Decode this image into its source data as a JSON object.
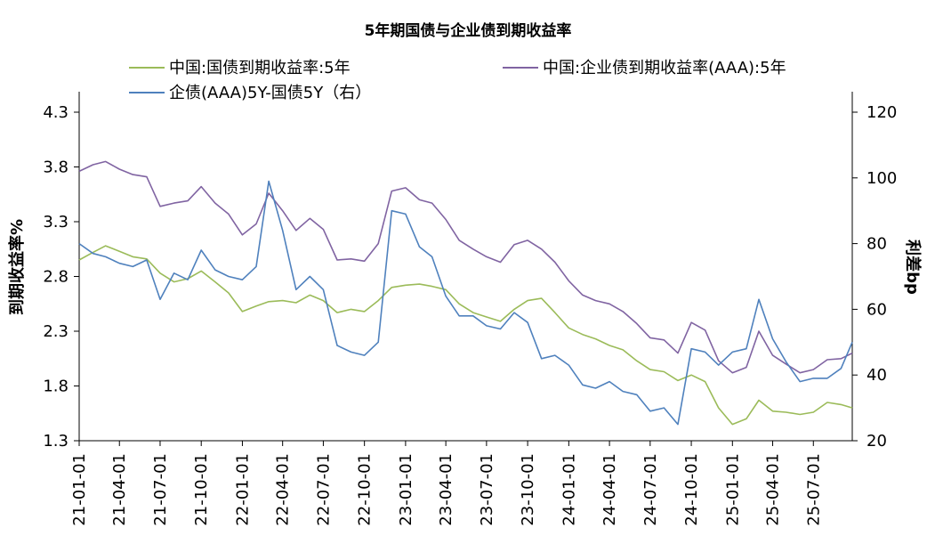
{
  "chart_data": {
    "type": "line",
    "title": "5年期国债与企业债到期收益率",
    "ylabel_left": "到期收益率%",
    "ylabel_right": "利差bp",
    "xlabel": "",
    "y_left": {
      "min": 1.3,
      "max": 4.3,
      "ticks": [
        "1.3",
        "1.8",
        "2.3",
        "2.8",
        "3.3",
        "3.8",
        "4.3"
      ]
    },
    "y_right": {
      "min": 20,
      "max": 120,
      "ticks": [
        "20",
        "40",
        "60",
        "80",
        "100",
        "120"
      ]
    },
    "x_range": [
      "2021-01-01",
      "2025-09-26"
    ],
    "x_ticks": [
      "21-01-01",
      "21-04-01",
      "21-07-01",
      "21-10-01",
      "22-01-01",
      "22-04-01",
      "22-07-01",
      "22-10-01",
      "23-01-01",
      "23-04-01",
      "23-07-01",
      "23-10-01",
      "24-01-01",
      "24-04-01",
      "24-07-01",
      "24-10-01",
      "25-01-01",
      "25-04-01",
      "25-07-01"
    ],
    "grid": false,
    "legend_position": "top",
    "series": [
      {
        "name": "中国:国债到期收益率:5年",
        "axis": "left",
        "color": "#9BBB59",
        "points": [
          [
            "2021-01-01",
            2.95
          ],
          [
            "2021-02-01",
            3.02
          ],
          [
            "2021-03-01",
            3.08
          ],
          [
            "2021-04-01",
            3.03
          ],
          [
            "2021-05-01",
            2.98
          ],
          [
            "2021-06-01",
            2.96
          ],
          [
            "2021-07-01",
            2.83
          ],
          [
            "2021-08-01",
            2.75
          ],
          [
            "2021-09-01",
            2.78
          ],
          [
            "2021-10-01",
            2.85
          ],
          [
            "2021-11-01",
            2.75
          ],
          [
            "2021-12-01",
            2.65
          ],
          [
            "2022-01-01",
            2.48
          ],
          [
            "2022-02-01",
            2.53
          ],
          [
            "2022-03-01",
            2.57
          ],
          [
            "2022-04-01",
            2.58
          ],
          [
            "2022-05-01",
            2.56
          ],
          [
            "2022-06-01",
            2.63
          ],
          [
            "2022-07-01",
            2.58
          ],
          [
            "2022-08-01",
            2.47
          ],
          [
            "2022-09-01",
            2.5
          ],
          [
            "2022-10-01",
            2.48
          ],
          [
            "2022-11-01",
            2.58
          ],
          [
            "2022-12-01",
            2.7
          ],
          [
            "2023-01-01",
            2.72
          ],
          [
            "2023-02-01",
            2.73
          ],
          [
            "2023-03-01",
            2.71
          ],
          [
            "2023-04-01",
            2.68
          ],
          [
            "2023-05-01",
            2.55
          ],
          [
            "2023-06-01",
            2.47
          ],
          [
            "2023-07-01",
            2.43
          ],
          [
            "2023-08-01",
            2.39
          ],
          [
            "2023-09-01",
            2.5
          ],
          [
            "2023-10-01",
            2.58
          ],
          [
            "2023-11-01",
            2.6
          ],
          [
            "2023-12-01",
            2.47
          ],
          [
            "2024-01-01",
            2.33
          ],
          [
            "2024-02-01",
            2.27
          ],
          [
            "2024-03-01",
            2.23
          ],
          [
            "2024-04-01",
            2.17
          ],
          [
            "2024-05-01",
            2.13
          ],
          [
            "2024-06-01",
            2.03
          ],
          [
            "2024-07-01",
            1.95
          ],
          [
            "2024-08-01",
            1.93
          ],
          [
            "2024-09-01",
            1.85
          ],
          [
            "2024-10-01",
            1.9
          ],
          [
            "2024-11-01",
            1.84
          ],
          [
            "2024-12-01",
            1.6
          ],
          [
            "2025-01-01",
            1.45
          ],
          [
            "2025-02-01",
            1.5
          ],
          [
            "2025-03-01",
            1.67
          ],
          [
            "2025-04-01",
            1.57
          ],
          [
            "2025-05-01",
            1.56
          ],
          [
            "2025-06-01",
            1.54
          ],
          [
            "2025-07-01",
            1.56
          ],
          [
            "2025-08-01",
            1.65
          ],
          [
            "2025-09-01",
            1.63
          ],
          [
            "2025-09-26",
            1.6
          ]
        ]
      },
      {
        "name": "中国:企业债到期收益率(AAA):5年",
        "axis": "left",
        "color": "#8064A2",
        "points": [
          [
            "2021-01-01",
            3.76
          ],
          [
            "2021-02-01",
            3.82
          ],
          [
            "2021-03-01",
            3.85
          ],
          [
            "2021-04-01",
            3.78
          ],
          [
            "2021-05-01",
            3.73
          ],
          [
            "2021-06-01",
            3.71
          ],
          [
            "2021-07-01",
            3.44
          ],
          [
            "2021-08-01",
            3.47
          ],
          [
            "2021-09-01",
            3.49
          ],
          [
            "2021-10-01",
            3.62
          ],
          [
            "2021-11-01",
            3.47
          ],
          [
            "2021-12-01",
            3.37
          ],
          [
            "2022-01-01",
            3.18
          ],
          [
            "2022-02-01",
            3.28
          ],
          [
            "2022-03-01",
            3.56
          ],
          [
            "2022-04-01",
            3.4
          ],
          [
            "2022-05-01",
            3.22
          ],
          [
            "2022-06-01",
            3.33
          ],
          [
            "2022-07-01",
            3.23
          ],
          [
            "2022-08-01",
            2.95
          ],
          [
            "2022-09-01",
            2.96
          ],
          [
            "2022-10-01",
            2.94
          ],
          [
            "2022-11-01",
            3.1
          ],
          [
            "2022-12-01",
            3.58
          ],
          [
            "2023-01-01",
            3.61
          ],
          [
            "2023-02-01",
            3.5
          ],
          [
            "2023-03-01",
            3.47
          ],
          [
            "2023-04-01",
            3.32
          ],
          [
            "2023-05-01",
            3.13
          ],
          [
            "2023-06-01",
            3.05
          ],
          [
            "2023-07-01",
            2.98
          ],
          [
            "2023-08-01",
            2.93
          ],
          [
            "2023-09-01",
            3.09
          ],
          [
            "2023-10-01",
            3.13
          ],
          [
            "2023-11-01",
            3.05
          ],
          [
            "2023-12-01",
            2.93
          ],
          [
            "2024-01-01",
            2.76
          ],
          [
            "2024-02-01",
            2.63
          ],
          [
            "2024-03-01",
            2.58
          ],
          [
            "2024-04-01",
            2.55
          ],
          [
            "2024-05-01",
            2.48
          ],
          [
            "2024-06-01",
            2.37
          ],
          [
            "2024-07-01",
            2.24
          ],
          [
            "2024-08-01",
            2.22
          ],
          [
            "2024-09-01",
            2.1
          ],
          [
            "2024-10-01",
            2.38
          ],
          [
            "2024-11-01",
            2.31
          ],
          [
            "2024-12-01",
            2.03
          ],
          [
            "2025-01-01",
            1.92
          ],
          [
            "2025-02-01",
            1.97
          ],
          [
            "2025-03-01",
            2.3
          ],
          [
            "2025-04-01",
            2.08
          ],
          [
            "2025-05-01",
            2.0
          ],
          [
            "2025-06-01",
            1.92
          ],
          [
            "2025-07-01",
            1.95
          ],
          [
            "2025-08-01",
            2.04
          ],
          [
            "2025-09-01",
            2.05
          ],
          [
            "2025-09-26",
            2.1
          ]
        ]
      },
      {
        "name": "企债(AAA)5Y-国债5Y（右）",
        "axis": "right",
        "color": "#4F81BD",
        "points": [
          [
            "2021-01-01",
            80
          ],
          [
            "2021-02-01",
            77
          ],
          [
            "2021-03-01",
            76
          ],
          [
            "2021-04-01",
            74
          ],
          [
            "2021-05-01",
            73
          ],
          [
            "2021-06-01",
            75
          ],
          [
            "2021-07-01",
            63
          ],
          [
            "2021-08-01",
            71
          ],
          [
            "2021-09-01",
            69
          ],
          [
            "2021-10-01",
            78
          ],
          [
            "2021-11-01",
            72
          ],
          [
            "2021-12-01",
            70
          ],
          [
            "2022-01-01",
            69
          ],
          [
            "2022-02-01",
            73
          ],
          [
            "2022-03-01",
            99
          ],
          [
            "2022-04-01",
            84
          ],
          [
            "2022-05-01",
            66
          ],
          [
            "2022-06-01",
            70
          ],
          [
            "2022-07-01",
            66
          ],
          [
            "2022-08-01",
            49
          ],
          [
            "2022-09-01",
            47
          ],
          [
            "2022-10-01",
            46
          ],
          [
            "2022-11-01",
            50
          ],
          [
            "2022-12-01",
            90
          ],
          [
            "2023-01-01",
            89
          ],
          [
            "2023-02-01",
            79
          ],
          [
            "2023-03-01",
            76
          ],
          [
            "2023-04-01",
            64
          ],
          [
            "2023-05-01",
            58
          ],
          [
            "2023-06-01",
            58
          ],
          [
            "2023-07-01",
            55
          ],
          [
            "2023-08-01",
            54
          ],
          [
            "2023-09-01",
            59
          ],
          [
            "2023-10-01",
            56
          ],
          [
            "2023-11-01",
            45
          ],
          [
            "2023-12-01",
            46
          ],
          [
            "2024-01-01",
            43
          ],
          [
            "2024-02-01",
            37
          ],
          [
            "2024-03-01",
            36
          ],
          [
            "2024-04-01",
            38
          ],
          [
            "2024-05-01",
            35
          ],
          [
            "2024-06-01",
            34
          ],
          [
            "2024-07-01",
            29
          ],
          [
            "2024-08-01",
            30
          ],
          [
            "2024-09-01",
            25
          ],
          [
            "2024-10-01",
            48
          ],
          [
            "2024-11-01",
            47
          ],
          [
            "2024-12-01",
            43
          ],
          [
            "2025-01-01",
            47
          ],
          [
            "2025-02-01",
            48
          ],
          [
            "2025-03-01",
            63
          ],
          [
            "2025-04-01",
            51
          ],
          [
            "2025-05-01",
            44
          ],
          [
            "2025-06-01",
            38
          ],
          [
            "2025-07-01",
            39
          ],
          [
            "2025-08-01",
            39
          ],
          [
            "2025-09-01",
            42
          ],
          [
            "2025-09-26",
            50
          ]
        ]
      }
    ]
  }
}
